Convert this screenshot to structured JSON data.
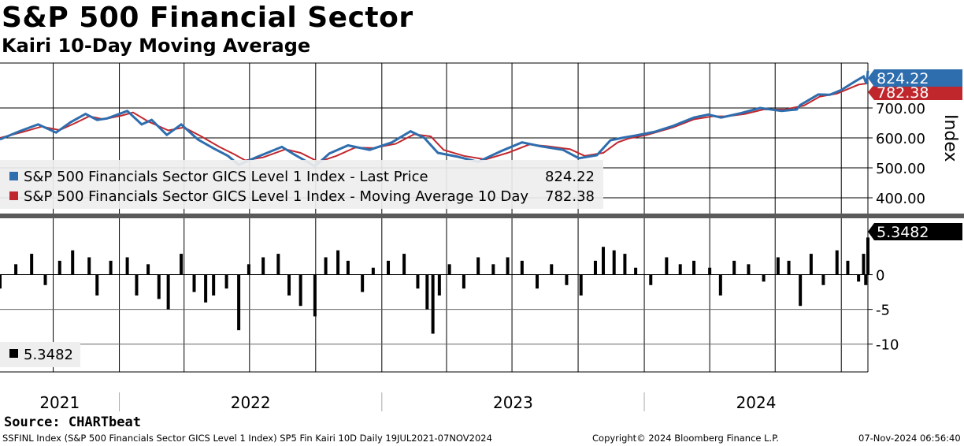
{
  "title": "S&P 500 Financial Sector",
  "subtitle": "Kairi 10-Day Moving Average",
  "source": "Source: CHARTbeat",
  "footer": {
    "left": "SSFINL Index (S&P 500 Financials Sector GICS Level 1 Index) SP5 Fin Kairi 10D  Daily 19JUL2021-07NOV2024",
    "center": "Copyright© 2024 Bloomberg Finance L.P.",
    "right": "07-Nov-2024 06:56:40"
  },
  "colors": {
    "price": "#2e6dae",
    "ma": "#c0272d",
    "kairi": "#000000"
  },
  "chart_data": [
    {
      "type": "line",
      "ylabel": "Index",
      "xrange": [
        "2021-07-19",
        "2024-11-07"
      ],
      "ylim": [
        350,
        850
      ],
      "yticks": [
        400,
        500,
        600,
        700
      ],
      "ytick_labels": [
        "400.00",
        "500.00",
        "600.00",
        "700.00"
      ],
      "x_labels": [
        "2021",
        "2022",
        "2023",
        "2024"
      ],
      "legend": [
        {
          "name": "S&P 500 Financials Sector GICS Level 1 Index - Last Price",
          "value": "824.22",
          "color": "#2e6dae"
        },
        {
          "name": "S&P 500 Financials Sector GICS Level 1 Index - Moving Average 10 Day",
          "value": "782.38",
          "color": "#c0272d"
        }
      ],
      "last_price_label": "824.22",
      "last_ma_label": "782.38",
      "series": [
        {
          "name": "S&P 500 Financials Sector GICS Level 1 Index - Last Price",
          "x": [
            "2021-07-19",
            "2021-08-15",
            "2021-09-10",
            "2021-10-05",
            "2021-10-25",
            "2021-11-15",
            "2021-12-01",
            "2021-12-15",
            "2022-01-12",
            "2022-02-01",
            "2022-02-15",
            "2022-03-08",
            "2022-03-28",
            "2022-04-20",
            "2022-05-12",
            "2022-06-01",
            "2022-06-16",
            "2022-07-10",
            "2022-08-15",
            "2022-09-01",
            "2022-09-30",
            "2022-10-20",
            "2022-11-15",
            "2022-12-15",
            "2023-01-15",
            "2023-02-10",
            "2023-03-01",
            "2023-03-20",
            "2023-04-15",
            "2023-05-15",
            "2023-06-15",
            "2023-07-15",
            "2023-08-10",
            "2023-09-10",
            "2023-10-02",
            "2023-10-27",
            "2023-11-15",
            "2023-12-01",
            "2023-12-20",
            "2024-01-15",
            "2024-02-10",
            "2024-03-10",
            "2024-03-30",
            "2024-04-17",
            "2024-05-15",
            "2024-06-10",
            "2024-07-10",
            "2024-07-31",
            "2024-08-05",
            "2024-08-30",
            "2024-09-15",
            "2024-10-01",
            "2024-10-21",
            "2024-11-01",
            "2024-11-05",
            "2024-11-07"
          ],
          "values": [
            595,
            622,
            645,
            618,
            652,
            680,
            660,
            665,
            690,
            645,
            660,
            610,
            645,
            595,
            565,
            540,
            510,
            535,
            570,
            545,
            505,
            548,
            575,
            560,
            585,
            622,
            600,
            550,
            538,
            520,
            555,
            585,
            572,
            560,
            532,
            542,
            592,
            600,
            608,
            620,
            640,
            668,
            678,
            668,
            683,
            700,
            690,
            695,
            710,
            745,
            744,
            760,
            790,
            805,
            780,
            824
          ]
        },
        {
          "name": "S&P 500 Financials Sector GICS Level 1 Index - Moving Average 10 Day",
          "x": [
            "2021-07-19",
            "2021-08-20",
            "2021-09-15",
            "2021-10-10",
            "2021-11-01",
            "2021-11-20",
            "2021-12-10",
            "2022-01-05",
            "2022-01-20",
            "2022-02-10",
            "2022-03-10",
            "2022-04-01",
            "2022-04-25",
            "2022-05-20",
            "2022-06-10",
            "2022-06-25",
            "2022-07-20",
            "2022-08-20",
            "2022-09-10",
            "2022-10-05",
            "2022-10-30",
            "2022-11-25",
            "2022-12-20",
            "2023-01-20",
            "2023-02-15",
            "2023-03-10",
            "2023-03-28",
            "2023-04-25",
            "2023-05-25",
            "2023-06-25",
            "2023-07-25",
            "2023-08-20",
            "2023-09-20",
            "2023-10-10",
            "2023-11-05",
            "2023-11-25",
            "2023-12-10",
            "2024-01-05",
            "2024-02-10",
            "2024-03-10",
            "2024-04-05",
            "2024-04-25",
            "2024-05-20",
            "2024-06-15",
            "2024-07-15",
            "2024-08-10",
            "2024-09-01",
            "2024-09-25",
            "2024-10-25",
            "2024-11-07"
          ],
          "values": [
            600,
            620,
            638,
            626,
            650,
            672,
            662,
            675,
            685,
            655,
            625,
            635,
            605,
            570,
            545,
            525,
            535,
            562,
            550,
            520,
            540,
            568,
            566,
            580,
            612,
            605,
            560,
            540,
            528,
            550,
            578,
            572,
            562,
            540,
            550,
            585,
            598,
            610,
            635,
            662,
            672,
            672,
            680,
            695,
            695,
            708,
            738,
            748,
            778,
            782
          ]
        }
      ]
    },
    {
      "type": "bar",
      "ylim": [
        -14,
        8
      ],
      "yticks": [
        0,
        -5,
        -10
      ],
      "ytick_labels": [
        "0",
        "-5",
        "-10"
      ],
      "legend": [
        {
          "name": "",
          "value": "5.3482",
          "color": "#000000"
        }
      ],
      "last_value_label": "5.3482",
      "series": [
        {
          "name": "Kairi 10-Day",
          "x": [
            "2021-07-19",
            "2021-08-10",
            "2021-09-01",
            "2021-09-20",
            "2021-10-10",
            "2021-10-28",
            "2021-11-20",
            "2021-12-01",
            "2021-12-20",
            "2022-01-12",
            "2022-01-25",
            "2022-02-10",
            "2022-02-25",
            "2022-03-10",
            "2022-03-28",
            "2022-04-15",
            "2022-05-01",
            "2022-05-12",
            "2022-05-30",
            "2022-06-16",
            "2022-06-30",
            "2022-07-20",
            "2022-08-10",
            "2022-08-25",
            "2022-09-10",
            "2022-09-30",
            "2022-10-15",
            "2022-11-01",
            "2022-11-15",
            "2022-12-05",
            "2022-12-20",
            "2023-01-10",
            "2023-02-01",
            "2023-02-20",
            "2023-03-05",
            "2023-03-13",
            "2023-03-22",
            "2023-04-05",
            "2023-04-25",
            "2023-05-15",
            "2023-06-05",
            "2023-06-25",
            "2023-07-15",
            "2023-08-05",
            "2023-08-25",
            "2023-09-15",
            "2023-10-05",
            "2023-10-25",
            "2023-11-05",
            "2023-11-20",
            "2023-12-05",
            "2023-12-20",
            "2024-01-10",
            "2024-02-01",
            "2024-02-20",
            "2024-03-10",
            "2024-04-01",
            "2024-04-16",
            "2024-05-05",
            "2024-05-25",
            "2024-06-15",
            "2024-07-05",
            "2024-07-20",
            "2024-08-05",
            "2024-08-20",
            "2024-09-06",
            "2024-09-25",
            "2024-10-10",
            "2024-10-25",
            "2024-11-01",
            "2024-11-04",
            "2024-11-07"
          ],
          "values": [
            -2,
            1.5,
            3,
            -1.5,
            2,
            3.5,
            2.5,
            -3,
            2,
            2.5,
            -3,
            1.5,
            -3.5,
            -5,
            3,
            -2.5,
            -4,
            -3,
            -2,
            -8,
            1.5,
            2.5,
            3,
            -3,
            -4.5,
            -6,
            2.5,
            3.5,
            2,
            -2.5,
            1,
            2,
            3,
            -2,
            -5,
            -8.5,
            -3,
            1.5,
            -2,
            2.5,
            1.5,
            2.5,
            2,
            -2,
            1.5,
            -1.5,
            -3,
            2,
            4,
            3.5,
            3,
            1,
            -1.5,
            2.5,
            1.5,
            2,
            1,
            -3,
            2,
            1.5,
            -1,
            2.5,
            2,
            -4.5,
            3,
            -1.5,
            3.5,
            2,
            -1,
            3,
            -1.5,
            5.35
          ]
        }
      ]
    }
  ]
}
